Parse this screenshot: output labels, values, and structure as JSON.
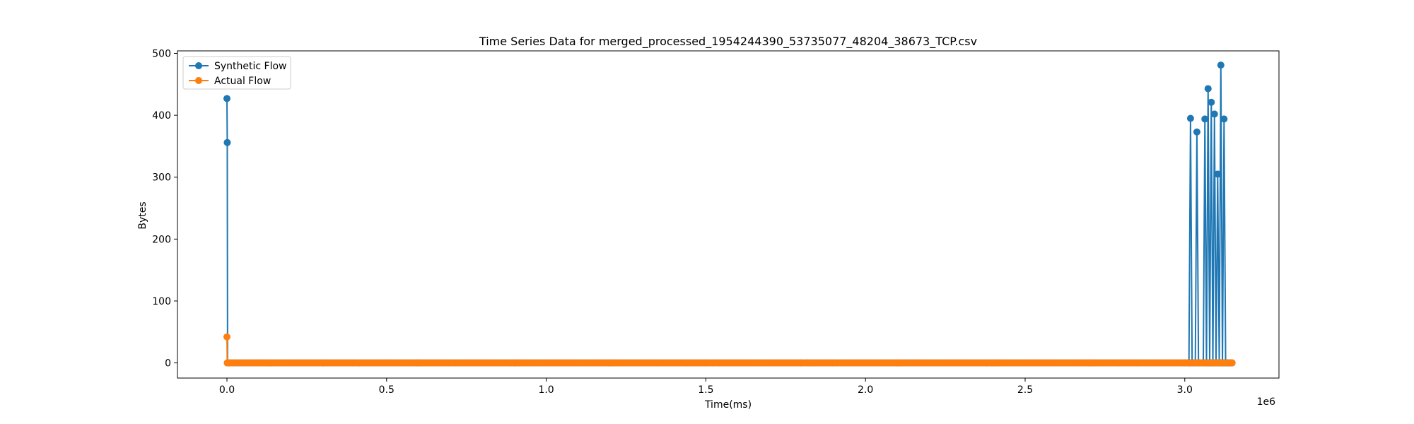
{
  "chart_data": {
    "type": "line",
    "title": "Time Series Data for merged_processed_1954244390_53735077_48204_38673_TCP.csv",
    "xlabel": "Time(ms)",
    "ylabel": "Bytes",
    "x_offset_text": "1e6",
    "xlim": [
      -155000,
      3295000
    ],
    "ylim": [
      -24.5,
      504
    ],
    "x_ticks": [
      0,
      0.5,
      1.0,
      1.5,
      2.0,
      2.5,
      3.0
    ],
    "x_tick_labels": [
      "0.0",
      "0.5",
      "1.0",
      "1.5",
      "2.0",
      "2.5",
      "3.0"
    ],
    "y_ticks": [
      0,
      100,
      200,
      300,
      400,
      500
    ],
    "y_tick_labels": [
      "0",
      "100",
      "200",
      "300",
      "400",
      "500"
    ],
    "grid": false,
    "legend": "top-left",
    "series": [
      {
        "name": "Synthetic Flow",
        "color": "#1f77b4",
        "x": [
          0,
          1000,
          2000,
          3000,
          300000,
          600000,
          900000,
          1200000,
          1500000,
          1800000,
          2100000,
          2400000,
          2700000,
          3000000,
          3013000,
          3018000,
          3023000,
          3033000,
          3038000,
          3043000,
          3058000,
          3063000,
          3068000,
          3073000,
          3078000,
          3083000,
          3088000,
          3093000,
          3098000,
          3103000,
          3108000,
          3113000,
          3118000,
          3123000,
          3128000,
          3133000,
          3138000,
          3143000,
          3148000
        ],
        "y": [
          427,
          356,
          0,
          0,
          0,
          0,
          0,
          0,
          0,
          0,
          0,
          0,
          0,
          0,
          0,
          395,
          0,
          0,
          373,
          0,
          0,
          394,
          0,
          443,
          0,
          421,
          0,
          402,
          0,
          305,
          0,
          481,
          0,
          394,
          0,
          0,
          0,
          0,
          0
        ]
      },
      {
        "name": "Actual Flow",
        "color": "#ff7f0e",
        "x": [
          0,
          1000,
          2000,
          3000,
          300000,
          600000,
          900000,
          1200000,
          1500000,
          1800000,
          2100000,
          2400000,
          2700000,
          3000000,
          3148000
        ],
        "y": [
          42,
          0,
          0,
          0,
          0,
          0,
          0,
          0,
          0,
          0,
          0,
          0,
          0,
          0,
          0
        ]
      }
    ]
  }
}
